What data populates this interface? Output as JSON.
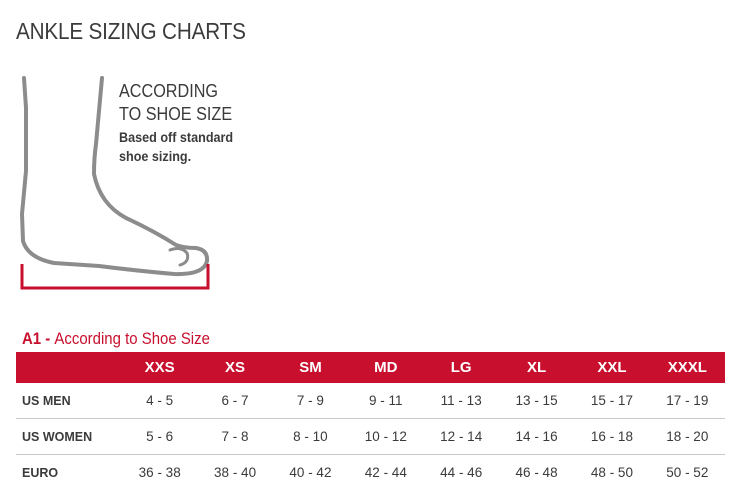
{
  "page": {
    "title": "ANKLE SIZING CHARTS",
    "accent_color": "#c8102e"
  },
  "illustration": {
    "icon": "foot-outline-icon",
    "bracket_color": "#c8102e"
  },
  "description": {
    "heading_line1": "ACCORDING",
    "heading_line2": "TO SHOE SIZE",
    "body_line1": "Based off standard",
    "body_line2": "shoe sizing."
  },
  "section": {
    "code": "A1",
    "separator": " - ",
    "title": "According to Shoe Size"
  },
  "size_table": {
    "columns": [
      "XXS",
      "XS",
      "SM",
      "MD",
      "LG",
      "XL",
      "XXL",
      "XXXL"
    ],
    "rows": [
      {
        "label": "US MEN",
        "values": [
          "4 - 5",
          "6 - 7",
          "7 - 9",
          "9 - 11",
          "11 - 13",
          "13 - 15",
          "15 - 17",
          "17 - 19"
        ]
      },
      {
        "label": "US WOMEN",
        "values": [
          "5 - 6",
          "7 - 8",
          "8 - 10",
          "10 - 12",
          "12 - 14",
          "14 - 16",
          "16 - 18",
          "18 - 20"
        ]
      },
      {
        "label": "EURO",
        "values": [
          "36 - 38",
          "38 - 40",
          "40 - 42",
          "42 - 44",
          "44 - 46",
          "46 - 48",
          "48 - 50",
          "50 - 52"
        ]
      }
    ]
  }
}
